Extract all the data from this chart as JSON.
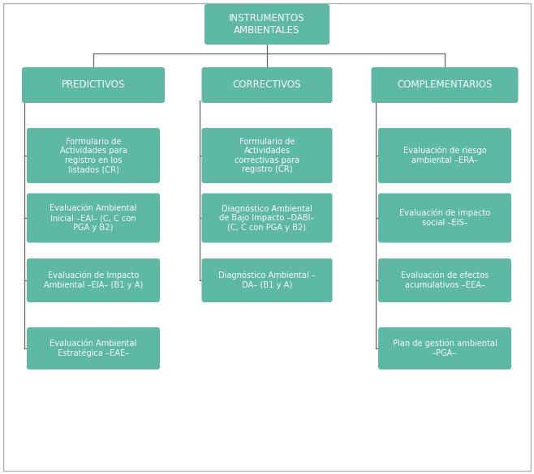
{
  "title": "INSTRUMENTOS\nAMBIENTALES",
  "categories": [
    "PREDICTIVOS",
    "CORRECTIVOS",
    "COMPLEMENTARIOS"
  ],
  "box_color": "#5db8a4",
  "text_color": "white",
  "bg_color": "white",
  "border_color": "#b0b0b0",
  "line_color": "#666666",
  "predictivos": [
    "Formulario de\nActividades para\nregistro en los\nlistados (CR)",
    "Evaluación Ambiental\nInicial –EAI– (C, C con\nPGA y B2)",
    "Evaluación de Impacto\nAmbiental –EIA– (B1 y A)",
    "Evaluación Ambiental\nEstratégica –EAE–"
  ],
  "correctivos": [
    "Formulario de\nActividades\ncorrectivas para\nregistro (CR)",
    "Diagnóstico Ambiental\nde Bajo Impacto –DABI–\n(C, C con PGA y B2)",
    "Diagnóstico Ambiental –\nDA– (B1 y A)",
    null
  ],
  "complementarios": [
    "Evaluación de riesgo\nambiental –ERA–",
    "Evaluación de impacto\nsocial –EIS–",
    "Evaluación de efectos\nacumulativos –EEA–",
    "Plan de gestión ambiental\n–PGA–"
  ],
  "fig_w": 6.58,
  "fig_h": 5.85,
  "dpi": 100
}
